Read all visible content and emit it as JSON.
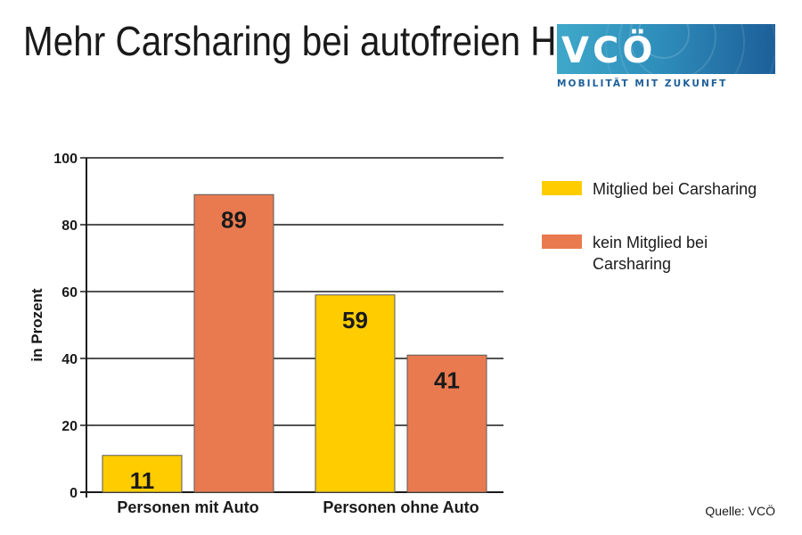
{
  "title": "Mehr Carsharing bei autofreien Haushalten",
  "logo": {
    "text": "VCÖ",
    "tagline": "MOBILITÄT MIT ZUKUNFT"
  },
  "source": "Quelle: VCÖ",
  "colors": {
    "yellow": "#FFCC00",
    "orange": "#E97A4F",
    "text": "#1a1a1a"
  },
  "chart_data": {
    "type": "bar",
    "categories": [
      "Personen mit Auto",
      "Personen ohne Auto"
    ],
    "series": [
      {
        "name": "Mitglied bei Carsharing",
        "values": [
          11,
          59
        ],
        "color": "#FFCC00"
      },
      {
        "name": "kein Mitglied bei Carsharing",
        "values": [
          89,
          41
        ],
        "color": "#E97A4F"
      }
    ],
    "ylabel": "in Prozent",
    "xlabel": "",
    "ylim": [
      0,
      100
    ],
    "yticks": [
      "0",
      "20",
      "40",
      "60",
      "80",
      "100"
    ],
    "grid": true,
    "legend": "right"
  }
}
